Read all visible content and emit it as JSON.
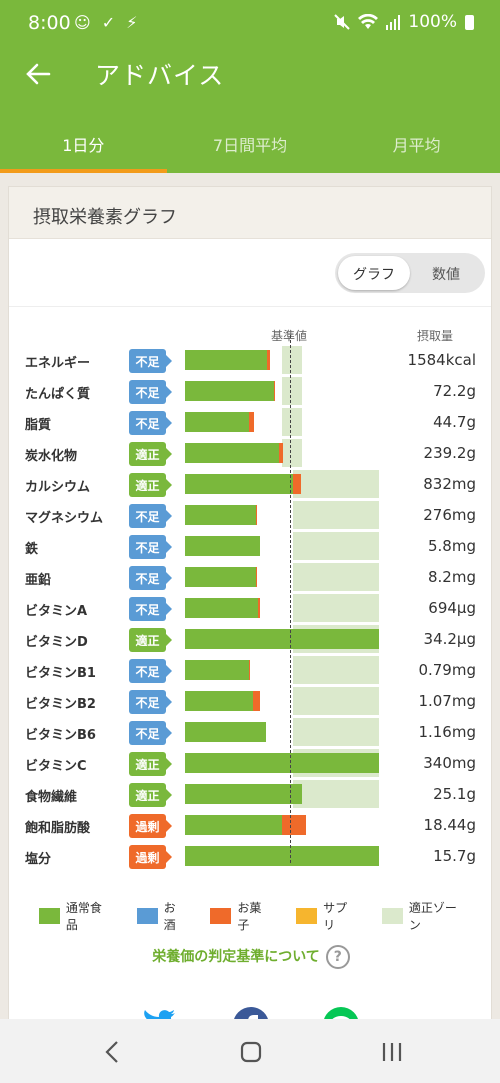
{
  "status": {
    "time": "8:00",
    "left_icons": "☺ ✓ ⚡",
    "battery": "100%"
  },
  "appbar": {
    "title": "アドバイス",
    "tabs": [
      {
        "label": "1日分",
        "active": true
      },
      {
        "label": "7日間平均",
        "active": false
      },
      {
        "label": "月平均",
        "active": false
      }
    ]
  },
  "card": {
    "title": "摂取栄養素グラフ",
    "toggle": {
      "graph": "グラフ",
      "numeric": "数値",
      "selected": "graph"
    },
    "col_standard": "基準値",
    "col_intake": "摂取量"
  },
  "colors": {
    "normal_food": "#7ab83c",
    "alcohol": "#5a9bd5",
    "sweets": "#ef6a2a",
    "supplement": "#f6b52e",
    "proper_zone": "#dbe9cc"
  },
  "nutrients": [
    {
      "name": "エネルギー",
      "status": "不足",
      "level": "low",
      "food": 0.76,
      "sweet": 0.03,
      "zone_start": 0.9,
      "zone_end": 1.08,
      "value": "1584kcal"
    },
    {
      "name": "たんぱく質",
      "status": "不足",
      "level": "low",
      "food": 0.82,
      "sweet": 0.01,
      "zone_start": 0.9,
      "zone_end": 1.08,
      "value": "72.2g"
    },
    {
      "name": "脂質",
      "status": "不足",
      "level": "low",
      "food": 0.59,
      "sweet": 0.05,
      "zone_start": 0.9,
      "zone_end": 1.08,
      "value": "44.7g"
    },
    {
      "name": "炭水化物",
      "status": "適正",
      "level": "ok",
      "food": 0.87,
      "sweet": 0.04,
      "zone_start": 0.9,
      "zone_end": 1.08,
      "value": "239.2g"
    },
    {
      "name": "カルシウム",
      "status": "適正",
      "level": "ok",
      "food": 1.0,
      "sweet": 0.07,
      "zone_start": 1.0,
      "zone_end": 1.8,
      "value": "832mg"
    },
    {
      "name": "マグネシウム",
      "status": "不足",
      "level": "low",
      "food": 0.66,
      "sweet": 0.01,
      "zone_start": 1.0,
      "zone_end": 1.8,
      "value": "276mg"
    },
    {
      "name": "鉄",
      "status": "不足",
      "level": "low",
      "food": 0.69,
      "sweet": 0.0,
      "zone_start": 1.0,
      "zone_end": 1.8,
      "value": "5.8mg"
    },
    {
      "name": "亜鉛",
      "status": "不足",
      "level": "low",
      "food": 0.66,
      "sweet": 0.01,
      "zone_start": 1.0,
      "zone_end": 1.8,
      "value": "8.2mg"
    },
    {
      "name": "ビタミンA",
      "status": "不足",
      "level": "low",
      "food": 0.68,
      "sweet": 0.01,
      "zone_start": 1.0,
      "zone_end": 1.8,
      "value": "694μg"
    },
    {
      "name": "ビタミンD",
      "status": "適正",
      "level": "ok",
      "food": 1.8,
      "sweet": 0.0,
      "zone_start": 1.0,
      "zone_end": 1.8,
      "value": "34.2μg"
    },
    {
      "name": "ビタミンB1",
      "status": "不足",
      "level": "low",
      "food": 0.59,
      "sweet": 0.01,
      "zone_start": 1.0,
      "zone_end": 1.8,
      "value": "0.79mg"
    },
    {
      "name": "ビタミンB2",
      "status": "不足",
      "level": "low",
      "food": 0.63,
      "sweet": 0.06,
      "zone_start": 1.0,
      "zone_end": 1.8,
      "value": "1.07mg"
    },
    {
      "name": "ビタミンB6",
      "status": "不足",
      "level": "low",
      "food": 0.75,
      "sweet": 0.0,
      "zone_start": 1.0,
      "zone_end": 1.8,
      "value": "1.16mg"
    },
    {
      "name": "ビタミンC",
      "status": "適正",
      "level": "ok",
      "food": 1.8,
      "sweet": 0.0,
      "zone_start": 1.0,
      "zone_end": 1.8,
      "value": "340mg"
    },
    {
      "name": "食物繊維",
      "status": "適正",
      "level": "ok",
      "food": 1.08,
      "sweet": 0.0,
      "zone_start": 1.0,
      "zone_end": 1.8,
      "value": "25.1g"
    },
    {
      "name": "飽和脂肪酸",
      "status": "過剰",
      "level": "over",
      "food": 0.9,
      "sweet": 0.22,
      "zone_start": 0.0,
      "zone_end": 0.0,
      "value": "18.44g"
    },
    {
      "name": "塩分",
      "status": "過剰",
      "level": "over",
      "food": 1.8,
      "sweet": 0.0,
      "zone_start": 0.0,
      "zone_end": 0.0,
      "value": "15.7g"
    }
  ],
  "legend": [
    {
      "label": "通常食品",
      "color": "#7ab83c"
    },
    {
      "label": "お酒",
      "color": "#5a9bd5"
    },
    {
      "label": "お菓子",
      "color": "#ef6a2a"
    },
    {
      "label": "サプリ",
      "color": "#f6b52e"
    },
    {
      "label": "適正ゾーン",
      "color": "#dbe9cc"
    }
  ],
  "help_link": "栄養価の判定基準について",
  "share_icons": [
    "twitter-icon",
    "facebook-icon",
    "line-icon"
  ]
}
